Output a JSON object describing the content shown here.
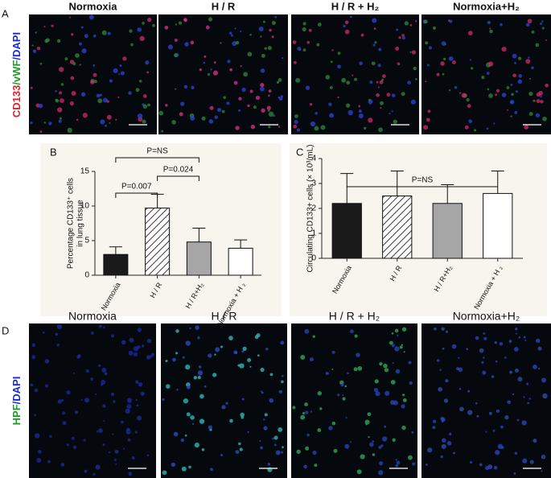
{
  "panel_labels": [
    "A",
    "B",
    "C",
    "D"
  ],
  "row_a": {
    "label_parts": [
      "CD133",
      "/vWF",
      "/DAPI"
    ],
    "titles": [
      "Normoxia",
      "H / R",
      "H / R + H₂",
      "Normoxia+H₂"
    ]
  },
  "row_d": {
    "label_parts": [
      "HPF",
      "/DAPI"
    ],
    "titles": [
      "Normoxia",
      "H / R",
      "H / R + H₂",
      "Normoxia+H₂"
    ]
  },
  "chart_data": [
    {
      "type": "bar",
      "ylabel": [
        "Percentage CD133⁺ cells",
        "in lung tissue"
      ],
      "categories": [
        "Normoxia",
        "H / R",
        "H / R+H₂",
        "Normoxia + H ₂"
      ],
      "values": [
        3.0,
        9.7,
        4.8,
        3.9
      ],
      "errors": [
        1.1,
        2.0,
        2.0,
        1.2
      ],
      "colors": [
        "#1a1a1a",
        "#ffffff",
        "#a6a6a6",
        "#ffffff"
      ],
      "hatch": [
        false,
        true,
        false,
        false
      ],
      "ylim": [
        0,
        15
      ],
      "yticks": [
        0,
        5,
        10,
        15
      ],
      "annotations": [
        {
          "text": "P=0.007",
          "between": [
            0,
            1
          ]
        },
        {
          "text": "P=0.024",
          "between": [
            1,
            2
          ]
        },
        {
          "text": "P=NS",
          "between": [
            0,
            2
          ]
        }
      ]
    },
    {
      "type": "bar",
      "ylabel": [
        "Circulating CD133+ cells (× 10³/mL)"
      ],
      "categories": [
        "Normoxia",
        "H / R",
        "H / R+H₂",
        "Normoxia + H ₂"
      ],
      "values": [
        2.2,
        2.5,
        2.2,
        2.6
      ],
      "errors": [
        1.2,
        1.0,
        0.75,
        0.9
      ],
      "colors": [
        "#1a1a1a",
        "#ffffff",
        "#a6a6a6",
        "#ffffff"
      ],
      "hatch": [
        false,
        true,
        false,
        false
      ],
      "ylim": [
        0,
        4
      ],
      "yticks": [
        0,
        1,
        2,
        3,
        4
      ],
      "annotations": [
        {
          "text": "P=NS",
          "between": [
            0,
            3
          ]
        }
      ]
    }
  ]
}
